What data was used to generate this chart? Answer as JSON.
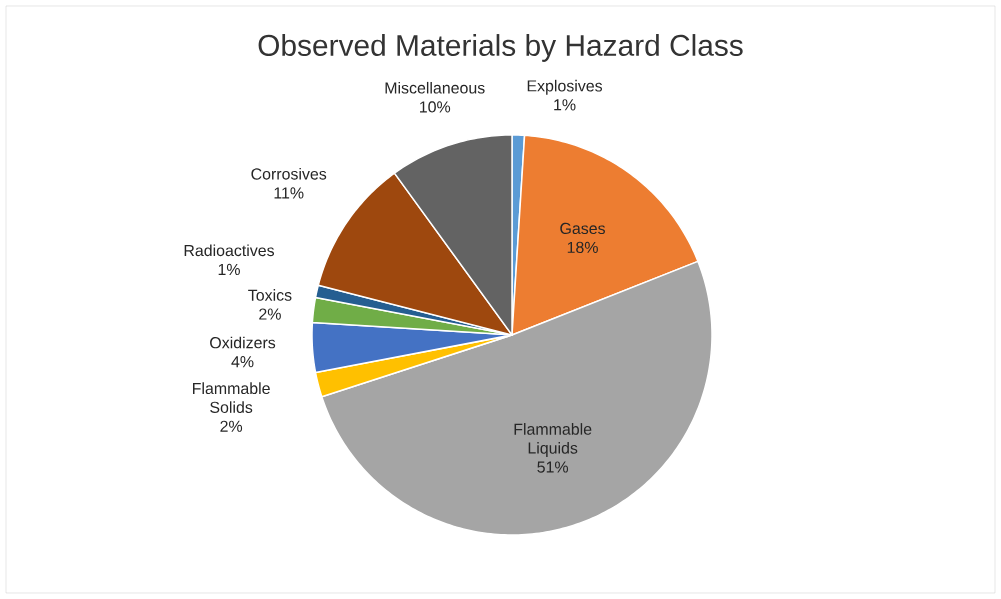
{
  "chart_data": {
    "type": "pie",
    "title": "Observed Materials by Hazard Class",
    "categories": [
      "Explosives",
      "Gases",
      "Flammable Liquids",
      "Flammable Solids",
      "Oxidizers",
      "Toxics",
      "Radioactives",
      "Corrosives",
      "Miscellaneous"
    ],
    "values": [
      1,
      18,
      51,
      2,
      4,
      2,
      1,
      11,
      10
    ],
    "value_labels": [
      "1%",
      "18%",
      "51%",
      "2%",
      "4%",
      "2%",
      "1%",
      "11%",
      "10%"
    ],
    "colors": [
      "#5b9bd5",
      "#ed7d31",
      "#a5a5a5",
      "#ffc000",
      "#4472c4",
      "#70ad47",
      "#255e91",
      "#9e480e",
      "#636363"
    ]
  }
}
